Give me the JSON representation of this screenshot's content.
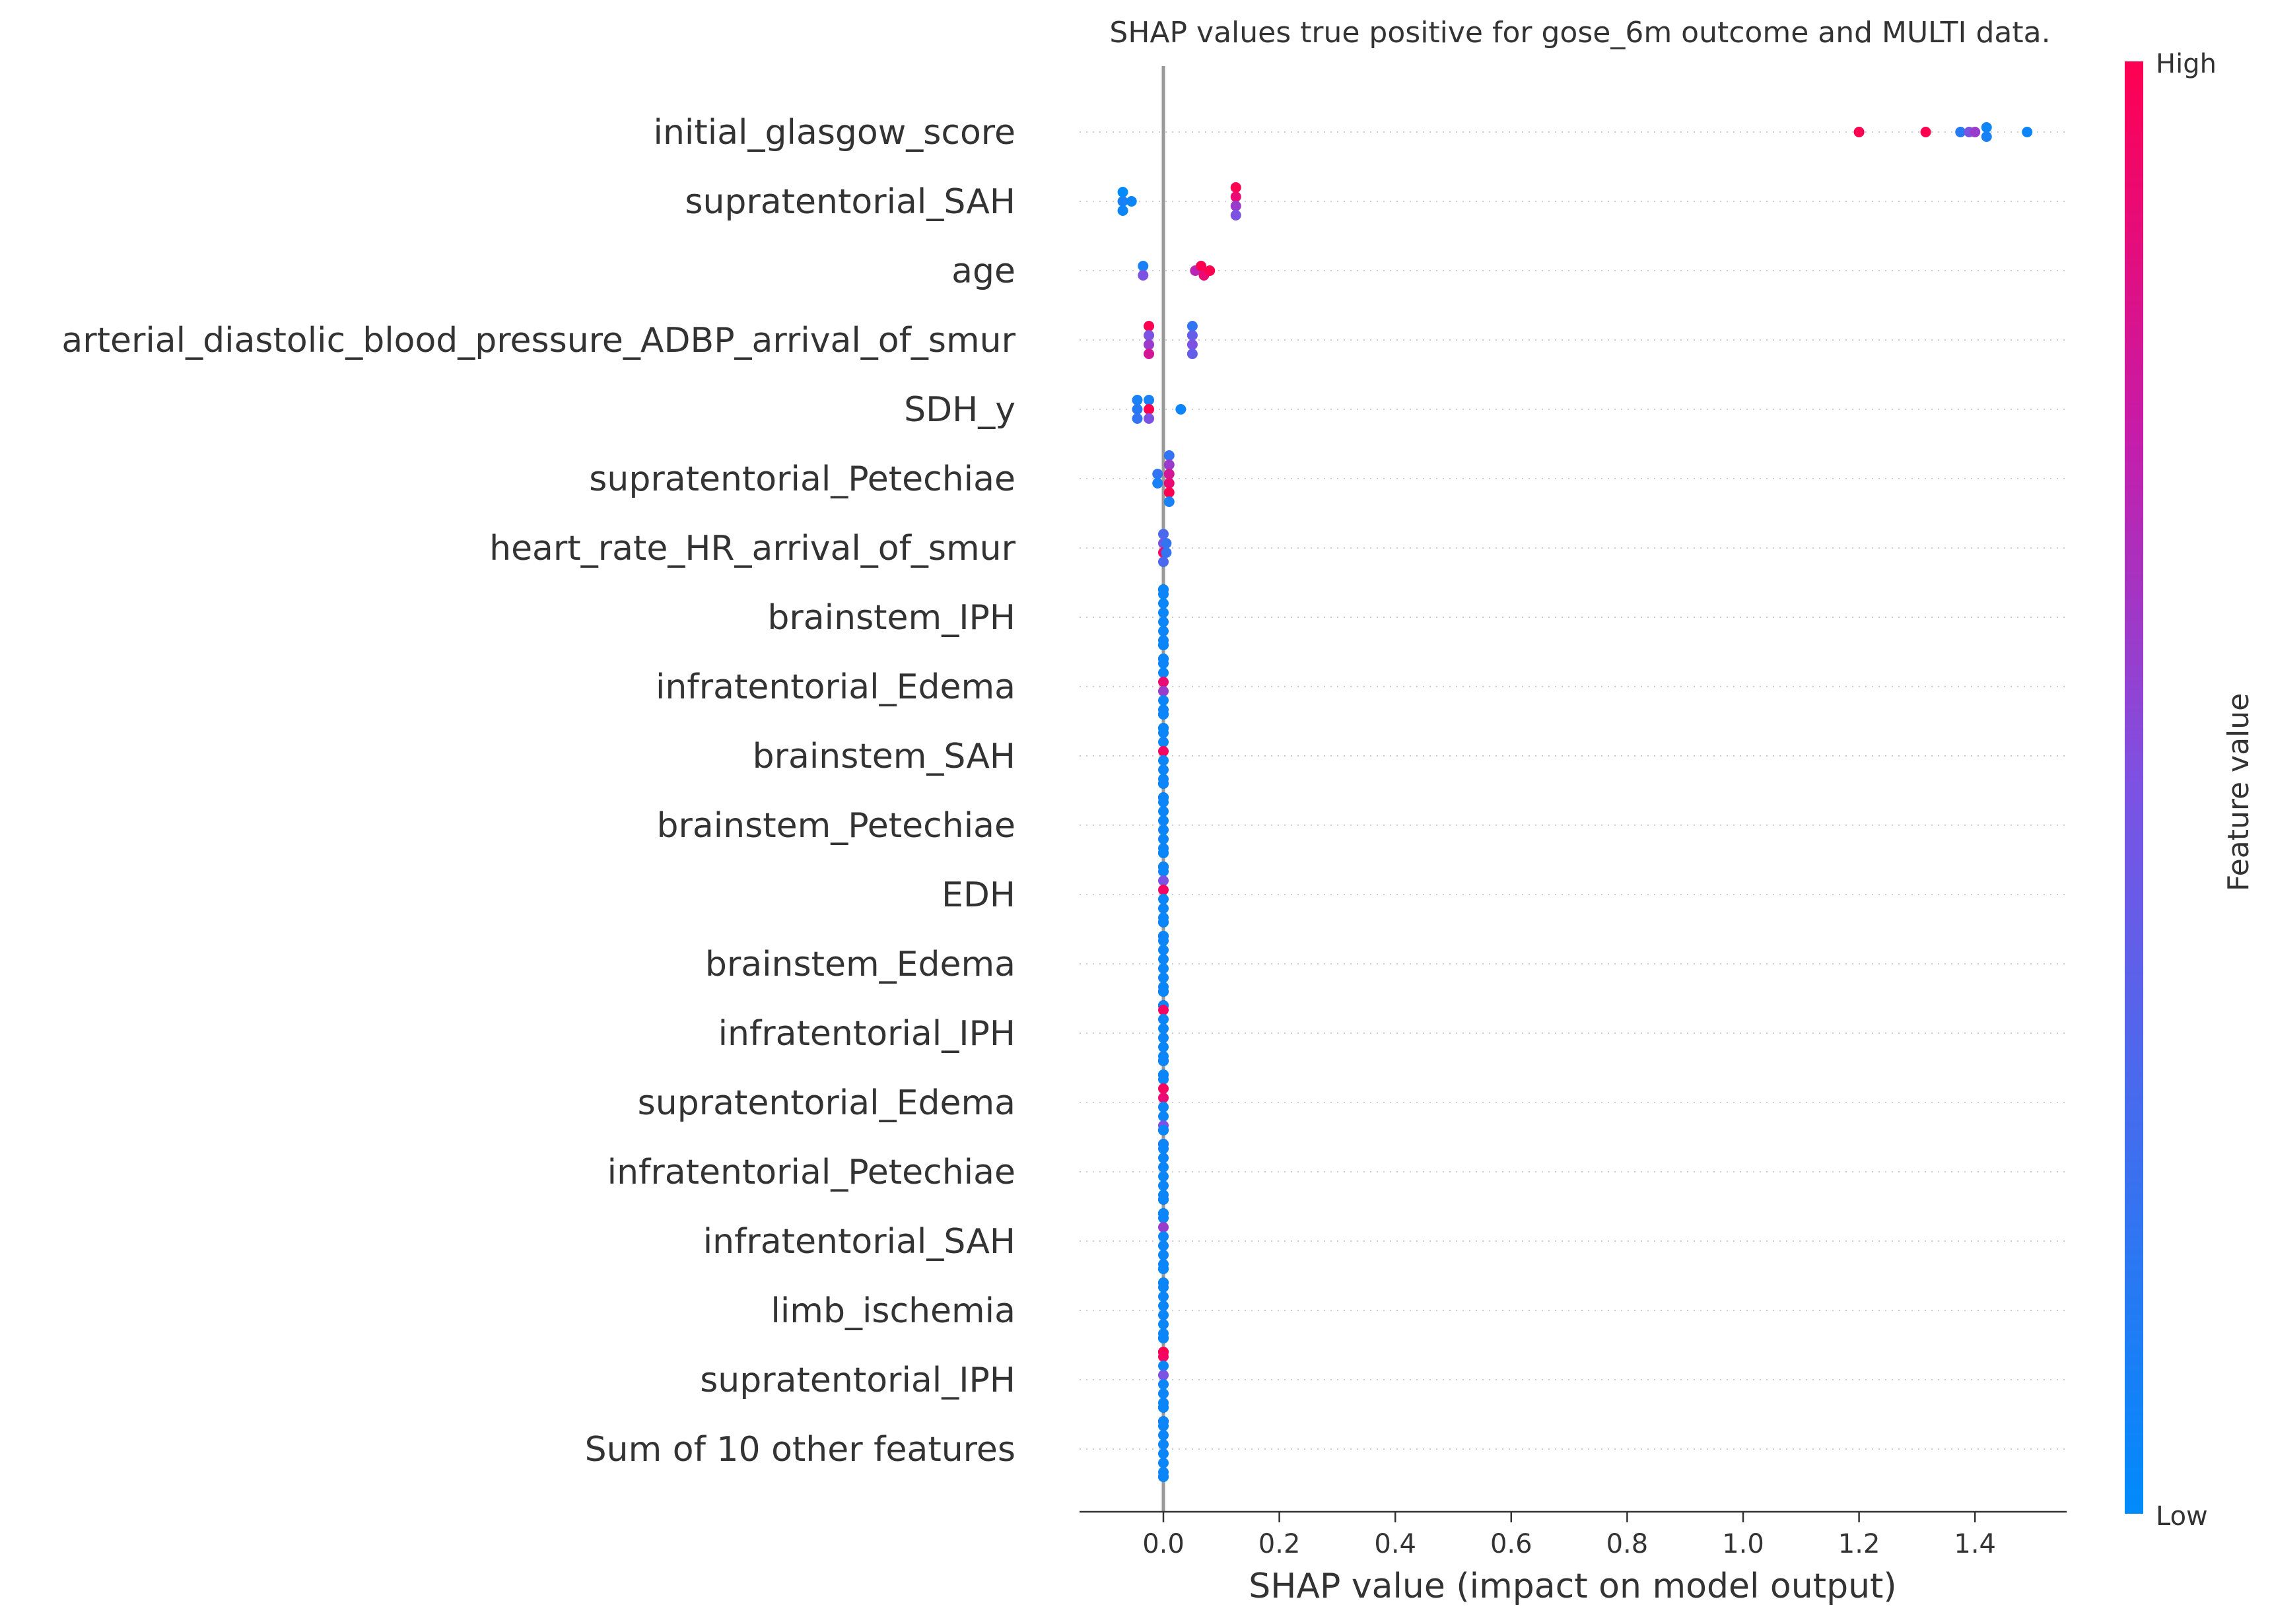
{
  "chart_data": {
    "type": "scatter",
    "subtype": "shap-beeswarm",
    "title": "SHAP values true positive for gose_6m outcome and MULTI data.",
    "xlabel": "SHAP value (impact on model output)",
    "ylabel": "",
    "xlim": [
      -0.15,
      1.56
    ],
    "xticks": [
      "0.0",
      "0.2",
      "0.4",
      "0.6",
      "0.8",
      "1.0",
      "1.2",
      "1.4"
    ],
    "grid": false,
    "colorbar": {
      "label": "Feature value",
      "high_label": "High",
      "low_label": "Low",
      "low_color": "#008bfb",
      "high_color": "#ff0051"
    },
    "features": [
      {
        "name": "initial_glasgow_score",
        "points": [
          [
            1.2,
            1
          ],
          [
            1.315,
            1
          ],
          [
            1.375,
            0.15
          ],
          [
            1.39,
            0.5
          ],
          [
            1.4,
            0.6
          ],
          [
            1.42,
            0.05
          ],
          [
            1.49,
            0.05
          ],
          [
            1.42,
            0.1
          ]
        ]
      },
      {
        "name": "supratentorial_SAH",
        "points": [
          [
            -0.07,
            0
          ],
          [
            -0.07,
            0.1
          ],
          [
            -0.055,
            0.05
          ],
          [
            -0.07,
            0.05
          ],
          [
            0.125,
            1
          ],
          [
            0.125,
            0.9
          ],
          [
            0.125,
            0.6
          ],
          [
            0.125,
            0.5
          ]
        ]
      },
      {
        "name": "age",
        "points": [
          [
            -0.035,
            0.1
          ],
          [
            -0.035,
            0.5
          ],
          [
            0.055,
            0.7
          ],
          [
            0.065,
            1
          ],
          [
            0.07,
            0.9
          ],
          [
            0.08,
            1
          ]
        ]
      },
      {
        "name": "arterial_diastolic_blood_pressure_ADBP_arrival_of_smur",
        "points": [
          [
            -0.025,
            1
          ],
          [
            -0.025,
            0.5
          ],
          [
            -0.025,
            0.6
          ],
          [
            -0.025,
            0.8
          ],
          [
            0.05,
            0.2
          ],
          [
            0.05,
            0.4
          ],
          [
            0.05,
            0.5
          ],
          [
            0.05,
            0.4
          ]
        ]
      },
      {
        "name": "SDH_y",
        "points": [
          [
            -0.045,
            0.1
          ],
          [
            -0.045,
            0.15
          ],
          [
            -0.045,
            0.2
          ],
          [
            -0.025,
            0.1
          ],
          [
            -0.025,
            1
          ],
          [
            -0.025,
            0.5
          ],
          [
            0.03,
            0.05
          ]
        ]
      },
      {
        "name": "supratentorial_Petechiae",
        "points": [
          [
            -0.01,
            0.2
          ],
          [
            -0.01,
            0.1
          ],
          [
            0.01,
            0.2
          ],
          [
            0.01,
            0.6
          ],
          [
            0.01,
            0.8
          ],
          [
            0.01,
            0.9
          ],
          [
            0.01,
            1
          ],
          [
            0.01,
            0.1
          ]
        ]
      },
      {
        "name": "heart_rate_HR_arrival_of_smur",
        "points": [
          [
            0.0,
            0.3
          ],
          [
            0.005,
            0.2
          ],
          [
            0.0,
            0.5
          ],
          [
            0.0,
            0.95
          ],
          [
            0.005,
            0.2
          ],
          [
            0.0,
            0.3
          ]
        ]
      },
      {
        "name": "brainstem_IPH",
        "points": [
          [
            0,
            0.05
          ],
          [
            0,
            0.05
          ],
          [
            0,
            0.05
          ],
          [
            0,
            0.05
          ],
          [
            0,
            0.05
          ],
          [
            0,
            0.05
          ],
          [
            0,
            0.05
          ],
          [
            0,
            0.05
          ],
          [
            0,
            0.05
          ],
          [
            0,
            0.05
          ],
          [
            0,
            0.05
          ],
          [
            0,
            0.05
          ]
        ]
      },
      {
        "name": "infratentorial_Edema",
        "points": [
          [
            0,
            0.05
          ],
          [
            0,
            0.05
          ],
          [
            0,
            0.05
          ],
          [
            0,
            0.05
          ],
          [
            0,
            0.05
          ],
          [
            0,
            0.9
          ],
          [
            0,
            0.6
          ],
          [
            0,
            0.05
          ],
          [
            0,
            0.05
          ],
          [
            0,
            0.05
          ],
          [
            0,
            0.05
          ],
          [
            0,
            0.05
          ]
        ]
      },
      {
        "name": "brainstem_SAH",
        "points": [
          [
            0,
            0.05
          ],
          [
            0,
            0.05
          ],
          [
            0,
            0.05
          ],
          [
            0,
            0.05
          ],
          [
            0,
            0.05
          ],
          [
            0,
            0.95
          ],
          [
            0,
            0.05
          ],
          [
            0,
            0.05
          ],
          [
            0,
            0.05
          ],
          [
            0,
            0.05
          ],
          [
            0,
            0.05
          ],
          [
            0,
            0.05
          ]
        ]
      },
      {
        "name": "brainstem_Petechiae",
        "points": [
          [
            0,
            0.05
          ],
          [
            0,
            0.05
          ],
          [
            0,
            0.05
          ],
          [
            0,
            0.05
          ],
          [
            0,
            0.05
          ],
          [
            0,
            0.05
          ],
          [
            0,
            0.05
          ],
          [
            0,
            0.05
          ],
          [
            0,
            0.05
          ],
          [
            0,
            0.05
          ],
          [
            0,
            0.05
          ],
          [
            0,
            0.05
          ]
        ]
      },
      {
        "name": "EDH",
        "points": [
          [
            0,
            0.05
          ],
          [
            0,
            0.05
          ],
          [
            0,
            0.05
          ],
          [
            0,
            0.05
          ],
          [
            0,
            0.5
          ],
          [
            0,
            0.95
          ],
          [
            0,
            0.05
          ],
          [
            0,
            0.05
          ],
          [
            0,
            0.05
          ],
          [
            0,
            0.05
          ],
          [
            0,
            0.05
          ],
          [
            0,
            0.05
          ]
        ]
      },
      {
        "name": "brainstem_Edema",
        "points": [
          [
            0,
            0.05
          ],
          [
            0,
            0.05
          ],
          [
            0,
            0.05
          ],
          [
            0,
            0.05
          ],
          [
            0,
            0.05
          ],
          [
            0,
            0.05
          ],
          [
            0,
            0.05
          ],
          [
            0,
            0.05
          ],
          [
            0,
            0.05
          ],
          [
            0,
            0.05
          ],
          [
            0,
            0.05
          ],
          [
            0,
            0.05
          ]
        ]
      },
      {
        "name": "infratentorial_IPH",
        "points": [
          [
            0,
            1
          ],
          [
            0,
            0.9
          ],
          [
            0,
            0.05
          ],
          [
            0,
            0.95
          ],
          [
            0,
            0.05
          ],
          [
            0,
            0.05
          ],
          [
            0,
            0.05
          ],
          [
            0,
            0.05
          ],
          [
            0,
            0.05
          ],
          [
            0,
            0.05
          ],
          [
            0,
            0.05
          ],
          [
            0,
            0.05
          ]
        ]
      },
      {
        "name": "supratentorial_Edema",
        "points": [
          [
            0,
            0.05
          ],
          [
            0,
            0.05
          ],
          [
            0,
            0.05
          ],
          [
            0,
            0.05
          ],
          [
            0,
            0.95
          ],
          [
            0,
            0.9
          ],
          [
            0,
            0.05
          ],
          [
            0,
            0.05
          ],
          [
            0,
            0.5
          ],
          [
            0,
            0.05
          ],
          [
            0,
            0.05
          ],
          [
            0,
            0.05
          ]
        ]
      },
      {
        "name": "infratentorial_Petechiae",
        "points": [
          [
            0,
            1
          ],
          [
            0,
            0.95
          ],
          [
            0,
            0.05
          ],
          [
            0,
            0.05
          ],
          [
            0,
            0.05
          ],
          [
            0,
            0.05
          ],
          [
            0,
            0.05
          ],
          [
            0,
            0.05
          ],
          [
            0,
            0.05
          ],
          [
            0,
            0.05
          ],
          [
            0,
            0.05
          ],
          [
            0,
            0.05
          ]
        ]
      },
      {
        "name": "infratentorial_SAH",
        "points": [
          [
            0,
            0.05
          ],
          [
            0,
            0.05
          ],
          [
            0,
            0.05
          ],
          [
            0,
            0.05
          ],
          [
            0,
            0.6
          ],
          [
            0,
            0.05
          ],
          [
            0,
            0.05
          ],
          [
            0,
            0.05
          ],
          [
            0,
            0.05
          ],
          [
            0,
            0.05
          ],
          [
            0,
            0.05
          ],
          [
            0,
            0.05
          ]
        ]
      },
      {
        "name": "limb_ischemia",
        "points": [
          [
            0,
            0.05
          ],
          [
            0,
            0.05
          ],
          [
            0,
            0.05
          ],
          [
            0,
            0.05
          ],
          [
            0,
            0.05
          ],
          [
            0,
            0.05
          ],
          [
            0,
            0.05
          ],
          [
            0,
            0.05
          ],
          [
            0,
            0.05
          ],
          [
            0,
            0.05
          ],
          [
            0,
            0.05
          ],
          [
            0,
            0.05
          ]
        ]
      },
      {
        "name": "supratentorial_IPH",
        "points": [
          [
            0,
            0.9
          ],
          [
            0,
            0.6
          ],
          [
            0,
            1
          ],
          [
            0,
            0.95
          ],
          [
            0,
            0.05
          ],
          [
            0,
            0.5
          ],
          [
            0,
            0.05
          ],
          [
            0,
            0.05
          ],
          [
            0,
            0.05
          ],
          [
            0,
            0.05
          ],
          [
            0,
            0.05
          ],
          [
            0,
            0.05
          ]
        ]
      },
      {
        "name": "Sum of 10 other features",
        "points": [
          [
            0,
            0.05
          ],
          [
            0,
            0.05
          ],
          [
            0,
            0.05
          ],
          [
            0,
            0.05
          ],
          [
            0,
            0.05
          ],
          [
            0,
            0.05
          ],
          [
            0,
            0.05
          ],
          [
            0,
            0.05
          ],
          [
            0,
            0.05
          ],
          [
            0,
            0.05
          ],
          [
            0,
            0.05
          ],
          [
            0,
            0.05
          ]
        ]
      }
    ]
  }
}
